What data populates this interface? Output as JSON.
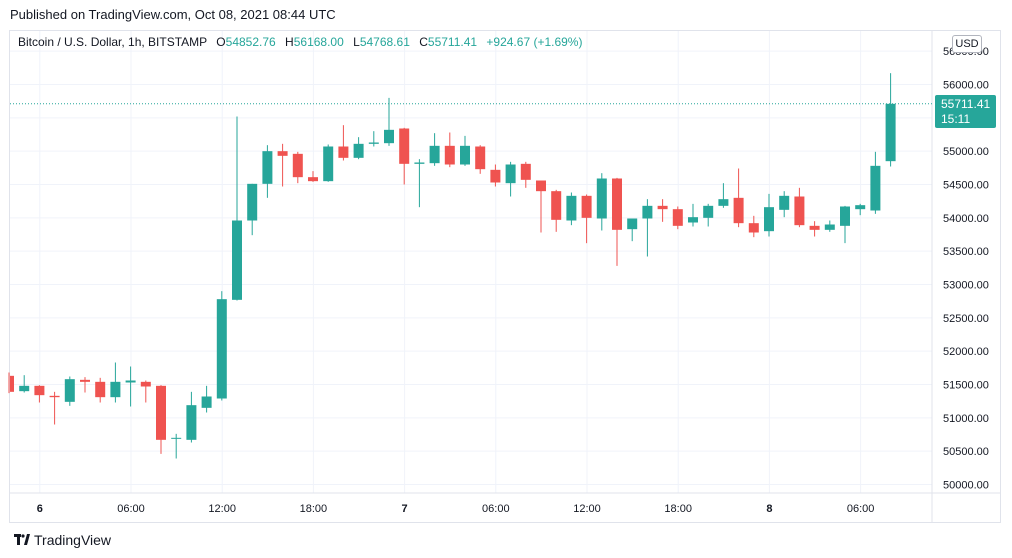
{
  "published": "Published on TradingView.com, Oct 08, 2021 08:44 UTC",
  "header": {
    "symbol": "Bitcoin / U.S. Dollar, 1h, BITSTAMP",
    "o_label": "O",
    "o_value": "54852.76",
    "h_label": "H",
    "h_value": "56168.00",
    "l_label": "L",
    "l_value": "54768.61",
    "c_label": "C",
    "c_value": "55711.41",
    "change": "+924.67 (+1.69%)"
  },
  "currency": "USD",
  "price_tag": {
    "price": "55711.41",
    "countdown": "15:11"
  },
  "footer": {
    "brand": "TradingView"
  },
  "colors": {
    "up": "#26a69a",
    "down": "#ef5350",
    "grid": "#f0f3fa",
    "text": "#131722"
  },
  "chart_data": {
    "type": "candlestick",
    "title": "Bitcoin / U.S. Dollar, 1h, BITSTAMP",
    "ylim": [
      49800,
      56500
    ],
    "y_ticks": [
      "50000.00",
      "50500.00",
      "51000.00",
      "51500.00",
      "52000.00",
      "52500.00",
      "53000.00",
      "53500.00",
      "54000.00",
      "54500.00",
      "55000.00",
      "55500.00",
      "56000.00",
      "56500.00"
    ],
    "x_ticks": [
      {
        "label": "6",
        "bold": true,
        "index": 2
      },
      {
        "label": "06:00",
        "bold": false,
        "index": 8
      },
      {
        "label": "12:00",
        "bold": false,
        "index": 14
      },
      {
        "label": "18:00",
        "bold": false,
        "index": 20
      },
      {
        "label": "7",
        "bold": true,
        "index": 26
      },
      {
        "label": "06:00",
        "bold": false,
        "index": 32
      },
      {
        "label": "12:00",
        "bold": false,
        "index": 38
      },
      {
        "label": "18:00",
        "bold": false,
        "index": 44
      },
      {
        "label": "8",
        "bold": true,
        "index": 50
      },
      {
        "label": "06:00",
        "bold": false,
        "index": 56
      }
    ],
    "last_price": 55711.41,
    "candles": [
      {
        "o": 51630,
        "h": 51680,
        "l": 51370,
        "c": 51390
      },
      {
        "o": 51400,
        "h": 51640,
        "l": 51380,
        "c": 51480
      },
      {
        "o": 51480,
        "h": 51490,
        "l": 51230,
        "c": 51340
      },
      {
        "o": 51330,
        "h": 51390,
        "l": 50900,
        "c": 51310
      },
      {
        "o": 51240,
        "h": 51620,
        "l": 51180,
        "c": 51580
      },
      {
        "o": 51570,
        "h": 51610,
        "l": 51380,
        "c": 51540
      },
      {
        "o": 51540,
        "h": 51600,
        "l": 51230,
        "c": 51310
      },
      {
        "o": 51310,
        "h": 51830,
        "l": 51230,
        "c": 51540
      },
      {
        "o": 51530,
        "h": 51770,
        "l": 51170,
        "c": 51560
      },
      {
        "o": 51540,
        "h": 51560,
        "l": 51230,
        "c": 51470
      },
      {
        "o": 51480,
        "h": 51490,
        "l": 50460,
        "c": 50670
      },
      {
        "o": 50700,
        "h": 50760,
        "l": 50390,
        "c": 50700
      },
      {
        "o": 50670,
        "h": 51390,
        "l": 50630,
        "c": 51190
      },
      {
        "o": 51150,
        "h": 51480,
        "l": 51080,
        "c": 51320
      },
      {
        "o": 51290,
        "h": 52900,
        "l": 51260,
        "c": 52780
      },
      {
        "o": 52770,
        "h": 55520,
        "l": 52760,
        "c": 53960
      },
      {
        "o": 53960,
        "h": 54510,
        "l": 53740,
        "c": 54510
      },
      {
        "o": 54510,
        "h": 55090,
        "l": 54300,
        "c": 55000
      },
      {
        "o": 55000,
        "h": 55110,
        "l": 54470,
        "c": 54930
      },
      {
        "o": 54960,
        "h": 54990,
        "l": 54520,
        "c": 54610
      },
      {
        "o": 54610,
        "h": 54700,
        "l": 54540,
        "c": 54550
      },
      {
        "o": 54550,
        "h": 55100,
        "l": 54540,
        "c": 55070
      },
      {
        "o": 55070,
        "h": 55390,
        "l": 54860,
        "c": 54900
      },
      {
        "o": 54900,
        "h": 55210,
        "l": 54880,
        "c": 55110
      },
      {
        "o": 55110,
        "h": 55300,
        "l": 55070,
        "c": 55130
      },
      {
        "o": 55120,
        "h": 55800,
        "l": 55080,
        "c": 55320
      },
      {
        "o": 55340,
        "h": 55350,
        "l": 54500,
        "c": 54810
      },
      {
        "o": 54810,
        "h": 54880,
        "l": 54160,
        "c": 54830
      },
      {
        "o": 54820,
        "h": 55270,
        "l": 54780,
        "c": 55080
      },
      {
        "o": 55080,
        "h": 55280,
        "l": 54760,
        "c": 54800
      },
      {
        "o": 54800,
        "h": 55230,
        "l": 54780,
        "c": 55080
      },
      {
        "o": 55070,
        "h": 55090,
        "l": 54660,
        "c": 54730
      },
      {
        "o": 54720,
        "h": 54800,
        "l": 54470,
        "c": 54530
      },
      {
        "o": 54520,
        "h": 54840,
        "l": 54320,
        "c": 54800
      },
      {
        "o": 54810,
        "h": 54840,
        "l": 54450,
        "c": 54570
      },
      {
        "o": 54560,
        "h": 54560,
        "l": 53780,
        "c": 54400
      },
      {
        "o": 54400,
        "h": 54420,
        "l": 53790,
        "c": 53970
      },
      {
        "o": 53960,
        "h": 54380,
        "l": 53890,
        "c": 54330
      },
      {
        "o": 54330,
        "h": 54350,
        "l": 53620,
        "c": 54000
      },
      {
        "o": 53990,
        "h": 54670,
        "l": 53810,
        "c": 54590
      },
      {
        "o": 54590,
        "h": 54600,
        "l": 53280,
        "c": 53820
      },
      {
        "o": 53830,
        "h": 53970,
        "l": 53650,
        "c": 53990
      },
      {
        "o": 53990,
        "h": 54280,
        "l": 53420,
        "c": 54180
      },
      {
        "o": 54180,
        "h": 54280,
        "l": 53940,
        "c": 54130
      },
      {
        "o": 54130,
        "h": 54170,
        "l": 53830,
        "c": 53880
      },
      {
        "o": 53930,
        "h": 54210,
        "l": 53870,
        "c": 54010
      },
      {
        "o": 54000,
        "h": 54210,
        "l": 53870,
        "c": 54180
      },
      {
        "o": 54180,
        "h": 54520,
        "l": 54150,
        "c": 54280
      },
      {
        "o": 54300,
        "h": 54740,
        "l": 53860,
        "c": 53920
      },
      {
        "o": 53920,
        "h": 54030,
        "l": 53710,
        "c": 53780
      },
      {
        "o": 53800,
        "h": 54360,
        "l": 53720,
        "c": 54160
      },
      {
        "o": 54120,
        "h": 54400,
        "l": 54010,
        "c": 54330
      },
      {
        "o": 54320,
        "h": 54450,
        "l": 53860,
        "c": 53890
      },
      {
        "o": 53880,
        "h": 53950,
        "l": 53720,
        "c": 53820
      },
      {
        "o": 53820,
        "h": 53960,
        "l": 53790,
        "c": 53900
      },
      {
        "o": 53880,
        "h": 54180,
        "l": 53620,
        "c": 54170
      },
      {
        "o": 54130,
        "h": 54210,
        "l": 54040,
        "c": 54190
      },
      {
        "o": 54110,
        "h": 54990,
        "l": 54060,
        "c": 54780
      },
      {
        "o": 54850,
        "h": 56170,
        "l": 54770,
        "c": 55710
      }
    ]
  }
}
